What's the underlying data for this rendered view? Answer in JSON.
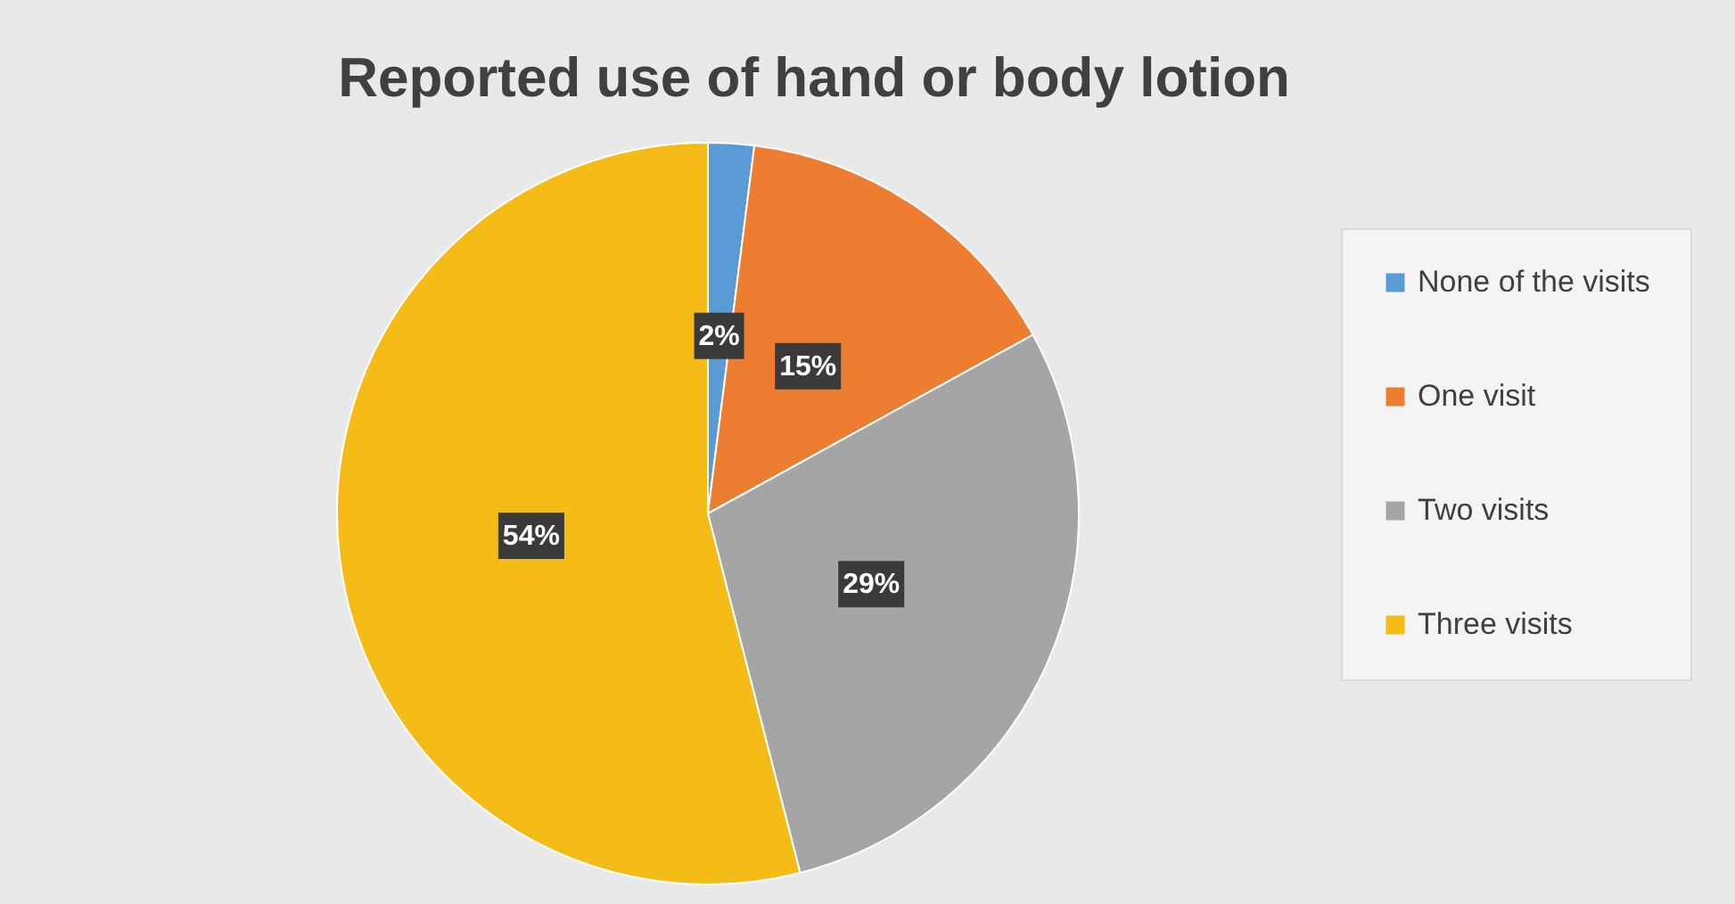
{
  "chart_data": {
    "type": "pie",
    "title": "Reported use of hand or body lotion",
    "categories": [
      "None of the visits",
      "One visit",
      "Two visits",
      "Three visits"
    ],
    "values": [
      2,
      15,
      29,
      54
    ],
    "colors": [
      "#5b9bd5",
      "#ed7d31",
      "#a5a5a5",
      "#f5bb17"
    ],
    "value_labels": [
      "2%",
      "15%",
      "29%",
      "54%"
    ],
    "legend": "right"
  }
}
